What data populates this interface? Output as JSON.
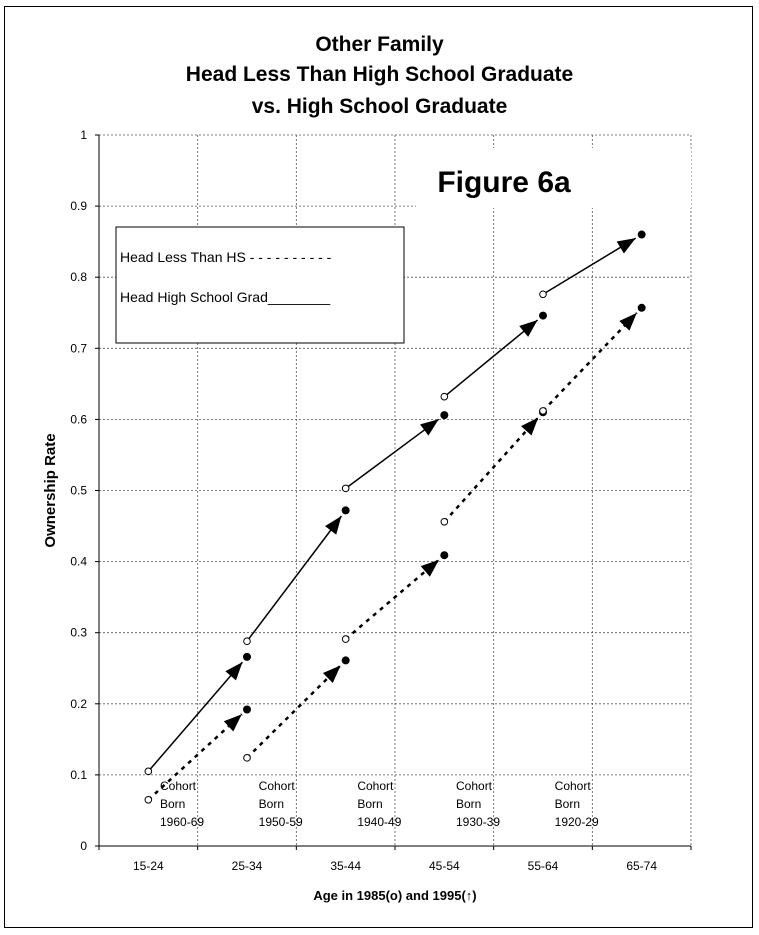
{
  "chart_data": {
    "type": "line",
    "title_lines": [
      "Other Family",
      "Head Less Than High School Graduate",
      "vs. High School Graduate"
    ],
    "figure_label": "Figure 6a",
    "ylabel": "Ownership Rate",
    "xlabel": "Age in 1985(o) and 1995(",
    "xlabel_arrow": "↑",
    "xlabel_end": ")",
    "ylim": [
      0,
      1
    ],
    "yticks": [
      "0",
      "0.1",
      "0.2",
      "0.3",
      "0.4",
      "0.5",
      "0.6",
      "0.7",
      "0.8",
      "0.9",
      "1"
    ],
    "categories": [
      "15-24",
      "25-34",
      "35-44",
      "45-54",
      "55-64",
      "65-74"
    ],
    "grid": true,
    "legend": {
      "position": "top-left",
      "entries": [
        "Head Less Than HS - - - - - - - - - -",
        "Head High School Grad________"
      ]
    },
    "series": [
      {
        "name": "Head High School Grad",
        "style": "solid",
        "values_1985": [
          0.105,
          0.288,
          0.503,
          0.632,
          0.776,
          null
        ],
        "values_1995": [
          null,
          0.266,
          0.472,
          0.606,
          0.746,
          0.86
        ]
      },
      {
        "name": "Head Less Than HS",
        "style": "dotted",
        "values_1985": [
          0.065,
          0.124,
          0.291,
          0.456,
          0.612,
          null
        ],
        "values_1995": [
          null,
          0.192,
          0.261,
          0.409,
          0.61,
          0.757
        ]
      }
    ],
    "cohorts": [
      {
        "lines": [
          "Cohort",
          "Born",
          "1960-69"
        ]
      },
      {
        "lines": [
          "Cohort",
          "Born",
          "1950-59"
        ]
      },
      {
        "lines": [
          "Cohort",
          "Born",
          "1940-49"
        ]
      },
      {
        "lines": [
          "Cohort",
          "Born",
          "1930-39"
        ]
      },
      {
        "lines": [
          "Cohort",
          "Born",
          "1920-29"
        ]
      }
    ],
    "colors": {
      "line": "#000000",
      "grid": "#555555"
    }
  }
}
